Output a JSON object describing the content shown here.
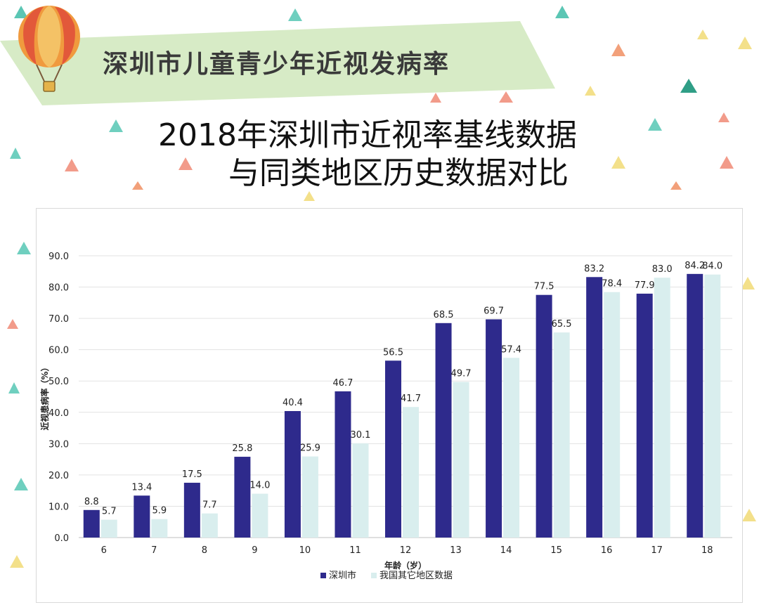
{
  "banner": {
    "title": "深圳市儿童青少年近视发病率"
  },
  "heading": {
    "line1": "2018年深圳市近视率基线数据",
    "line2": "与同类地区历史数据对比"
  },
  "colors": {
    "shenzhen": "#2e2a8c",
    "other": "#d9eeee",
    "banner": "#d7ebc6"
  },
  "chart_data": {
    "type": "bar",
    "categories": [
      "6",
      "7",
      "8",
      "9",
      "10",
      "11",
      "12",
      "13",
      "14",
      "15",
      "16",
      "17",
      "18"
    ],
    "series": [
      {
        "name": "深圳市",
        "values": [
          8.8,
          13.4,
          17.5,
          25.8,
          40.4,
          46.7,
          56.5,
          68.5,
          69.7,
          77.5,
          83.2,
          77.9,
          84.2
        ]
      },
      {
        "name": "我国其它地区数据",
        "values": [
          5.7,
          5.9,
          7.7,
          14.0,
          25.9,
          30.1,
          41.7,
          49.7,
          57.4,
          65.5,
          78.4,
          83.0,
          84.0
        ]
      }
    ],
    "yticks": [
      "0.0",
      "10.0",
      "20.0",
      "30.0",
      "40.0",
      "50.0",
      "60.0",
      "70.0",
      "80.0",
      "90.0"
    ],
    "xlabel": "年龄（岁）",
    "ylabel": "近视患病率（%）",
    "ylim": [
      0,
      90
    ],
    "grid": true,
    "legend": "bottom"
  }
}
